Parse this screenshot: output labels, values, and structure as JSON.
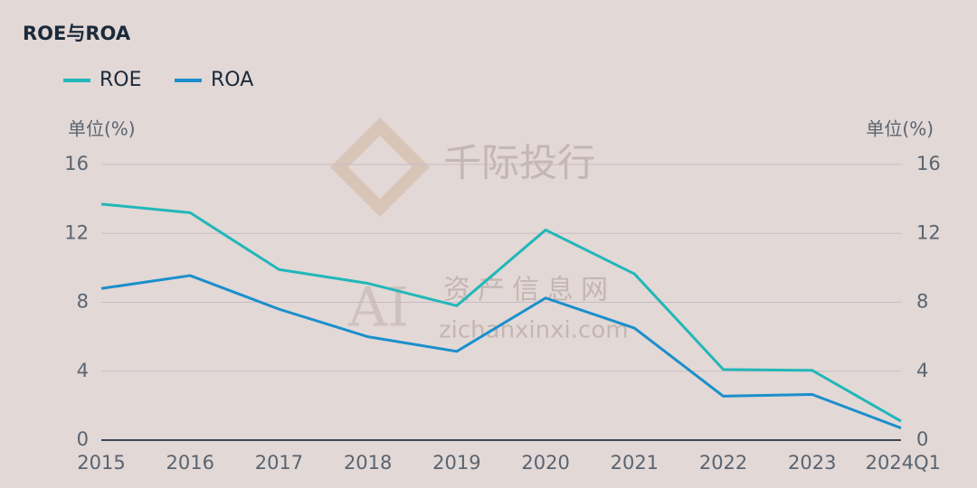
{
  "chart_data": {
    "type": "line",
    "title": "ROE与ROA",
    "categories": [
      "2015",
      "2016",
      "2017",
      "2018",
      "2019",
      "2020",
      "2021",
      "2022",
      "2023",
      "2024Q1"
    ],
    "series": [
      {
        "name": "ROE",
        "color": "#22b7b9",
        "values": [
          13.7,
          13.2,
          9.9,
          9.1,
          7.8,
          12.2,
          9.65,
          4.1,
          4.05,
          1.1
        ]
      },
      {
        "name": "ROA",
        "color": "#1b8fcc",
        "values": [
          8.8,
          9.55,
          7.6,
          6.0,
          5.15,
          8.25,
          6.5,
          2.55,
          2.65,
          0.7
        ]
      }
    ],
    "ylabel": "单位(%)",
    "y2label": "单位(%)",
    "ylim": [
      0,
      16
    ],
    "yticks": [
      0,
      4,
      8,
      12,
      16
    ],
    "y2lim": [
      0,
      16
    ],
    "y2ticks": [
      0,
      4,
      8,
      12,
      16
    ],
    "grid": true,
    "legend": "top-left",
    "watermarks": [
      "千际投行",
      "AI",
      "资产信息网",
      "zichanxinxi.com"
    ]
  }
}
